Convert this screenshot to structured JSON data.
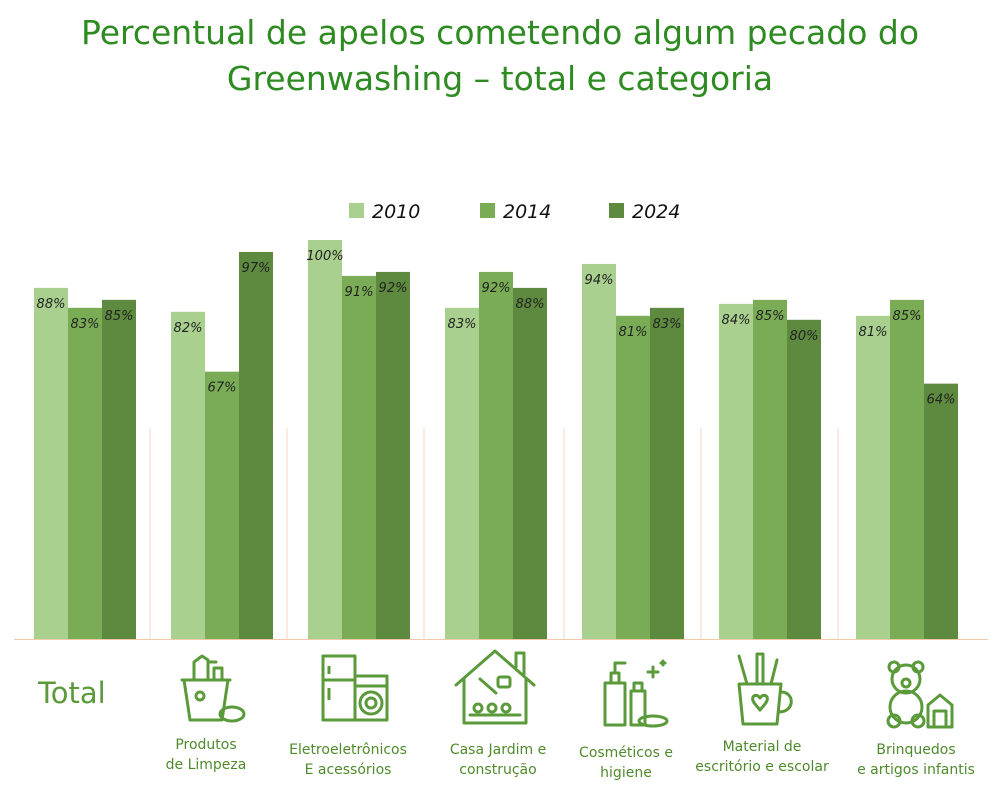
{
  "title_line1": "Percentual de apelos cometendo algum pecado do",
  "title_line2": "Greenwashing – total e categoria",
  "chart_data": {
    "type": "bar",
    "title": "Percentual de apelos cometendo algum pecado do Greenwashing – total e categoria",
    "categories": [
      "Total",
      "Produtos de Limpeza",
      "Eletroeletrônicos E acessórios",
      "Casa Jardim e construção",
      "Cosméticos e higiene",
      "Material de escritório e escolar",
      "Brinquedos e artigos infantis"
    ],
    "series": [
      {
        "name": "2010",
        "color": "#a9d08e",
        "values": [
          88,
          82,
          100,
          83,
          94,
          84,
          81
        ]
      },
      {
        "name": "2014",
        "color": "#7aac55",
        "values": [
          83,
          67,
          91,
          92,
          81,
          85,
          85
        ]
      },
      {
        "name": "2024",
        "color": "#5d8a3e",
        "values": [
          85,
          97,
          92,
          88,
          83,
          80,
          64
        ]
      }
    ],
    "value_suffix": "%",
    "ylim": [
      0,
      100
    ],
    "legend_position": "top",
    "grid": false
  },
  "labels": {
    "total": "Total",
    "cat1_l1": "Produtos",
    "cat1_l2": "de Limpeza",
    "cat2_l1": "Eletroeletrônicos",
    "cat2_l2": "E acessórios",
    "cat3_l1": "Casa Jardim e",
    "cat3_l2": "construção",
    "cat4_l1": "Cosméticos e",
    "cat4_l2": "higiene",
    "cat5_l1": "Material de",
    "cat5_l2": "escritório e escolar",
    "cat6_l1": "Brinquedos",
    "cat6_l2": "e artigos infantis"
  },
  "icons": [
    "cleaning-bucket-icon",
    "appliances-icon",
    "house-garden-icon",
    "cosmetics-icon",
    "pencil-cup-icon",
    "teddy-bear-icon"
  ]
}
